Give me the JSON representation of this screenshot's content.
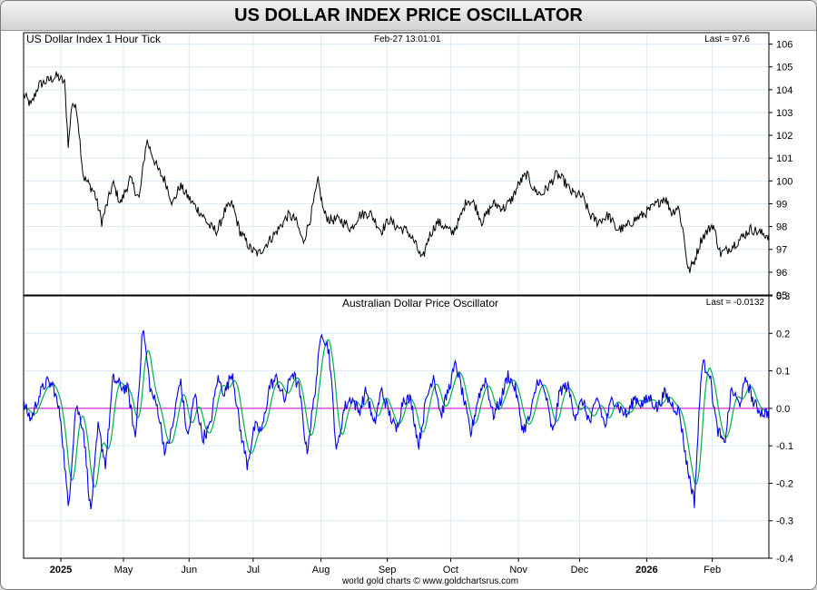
{
  "page_title": "US DOLLAR INDEX PRICE OSCILLATOR",
  "footer": "world gold charts © www.goldchartsrus.com",
  "colors": {
    "price": "#000000",
    "oscillator": "#0000ee",
    "signal": "#00b050",
    "zero_line": "#cc00cc",
    "grid": "#d9eaf5"
  },
  "chart_data": [
    {
      "type": "line",
      "title": "US Dollar Index 1 Hour Tick",
      "timestamp": "Feb-27  13:01:01",
      "last_label": "Last = 97.6",
      "ylim": [
        95,
        106.5
      ],
      "yticks": [
        95,
        96,
        97,
        98,
        99,
        100,
        101,
        102,
        103,
        104,
        105,
        106
      ],
      "ytick_labels": [
        "95",
        "96",
        "97",
        "98",
        "99",
        "100",
        "101",
        "102",
        "103",
        "104",
        "105",
        "106"
      ],
      "x_range": [
        0,
        100
      ],
      "keypoints": [
        [
          0,
          103.8
        ],
        [
          1,
          103.3
        ],
        [
          2,
          104.2
        ],
        [
          4.5,
          104.6
        ],
        [
          5.5,
          104.3
        ],
        [
          6,
          101.5
        ],
        [
          6.5,
          103.5
        ],
        [
          7.2,
          103.0
        ],
        [
          8,
          100.2
        ],
        [
          9.5,
          99.5
        ],
        [
          10.5,
          98.2
        ],
        [
          12,
          99.9
        ],
        [
          13,
          99.0
        ],
        [
          14.3,
          100.1
        ],
        [
          15.5,
          99.2
        ],
        [
          16.5,
          101.8
        ],
        [
          18,
          100.5
        ],
        [
          19,
          100.0
        ],
        [
          20,
          99.0
        ],
        [
          21,
          99.8
        ],
        [
          22.5,
          99.1
        ],
        [
          24,
          98.5
        ],
        [
          25,
          98.0
        ],
        [
          26,
          97.8
        ],
        [
          27,
          98.7
        ],
        [
          28,
          99.0
        ],
        [
          29,
          97.8
        ],
        [
          30.5,
          97.0
        ],
        [
          31.5,
          96.8
        ],
        [
          32.5,
          97.2
        ],
        [
          34,
          97.8
        ],
        [
          35.5,
          98.5
        ],
        [
          36.5,
          98.3
        ],
        [
          37.5,
          97.3
        ],
        [
          38.5,
          98.4
        ],
        [
          39.5,
          100.0
        ],
        [
          40.3,
          98.6
        ],
        [
          41,
          98.3
        ],
        [
          42.5,
          98.3
        ],
        [
          44,
          97.9
        ],
        [
          45,
          98.5
        ],
        [
          46.5,
          98.6
        ],
        [
          48,
          97.8
        ],
        [
          49,
          98.3
        ],
        [
          50,
          98.0
        ],
        [
          51.5,
          97.8
        ],
        [
          52.5,
          97.3
        ],
        [
          53.5,
          96.5
        ],
        [
          54.3,
          97.5
        ],
        [
          55.5,
          98.2
        ],
        [
          56.5,
          98.0
        ],
        [
          57.5,
          97.7
        ],
        [
          58.5,
          98.3
        ],
        [
          59.5,
          99.2
        ],
        [
          60.5,
          99.0
        ],
        [
          61.5,
          98.2
        ],
        [
          63,
          99.0
        ],
        [
          64.5,
          98.8
        ],
        [
          65.5,
          99.2
        ],
        [
          66.5,
          99.9
        ],
        [
          67.5,
          100.3
        ],
        [
          68.5,
          99.6
        ],
        [
          69.5,
          99.4
        ],
        [
          70.5,
          99.8
        ],
        [
          71.5,
          100.3
        ],
        [
          72.5,
          100.0
        ],
        [
          73.5,
          99.5
        ],
        [
          75,
          99.3
        ],
        [
          76,
          98.5
        ],
        [
          77,
          98.2
        ],
        [
          78.5,
          98.5
        ],
        [
          79.5,
          97.9
        ],
        [
          80.5,
          97.9
        ],
        [
          82,
          98.3
        ],
        [
          83.5,
          98.6
        ],
        [
          85,
          99.0
        ],
        [
          86,
          99.3
        ],
        [
          87,
          98.6
        ],
        [
          87.8,
          98.9
        ],
        [
          88.5,
          97.8
        ],
        [
          89.2,
          96.0
        ],
        [
          90,
          96.5
        ],
        [
          91,
          97.5
        ],
        [
          92.5,
          98.1
        ],
        [
          93.5,
          96.8
        ],
        [
          94.5,
          97.0
        ],
        [
          96,
          97.4
        ],
        [
          97.5,
          97.9
        ],
        [
          99,
          97.7
        ],
        [
          100,
          97.6
        ]
      ]
    },
    {
      "type": "line",
      "title": "Australian Dollar Price Oscillator",
      "last_label": "Last = -0.0132",
      "ylim": [
        -0.4,
        0.3
      ],
      "yticks": [
        -0.4,
        -0.3,
        -0.2,
        -0.1,
        0,
        0.1,
        0.2,
        0.3
      ],
      "ytick_labels": [
        "-0.4",
        "-0.3",
        "-0.2",
        "-0.1",
        "0.0",
        "0.1",
        "0.2",
        "0.3"
      ],
      "x_range": [
        0,
        100
      ],
      "series": [
        {
          "name": "oscillator",
          "keypoints": [
            [
              0,
              0.01
            ],
            [
              1,
              -0.03
            ],
            [
              2,
              0.03
            ],
            [
              3,
              0.07
            ],
            [
              4,
              0.06
            ],
            [
              5,
              -0.03
            ],
            [
              6,
              -0.27
            ],
            [
              7,
              0.01
            ],
            [
              8,
              -0.05
            ],
            [
              9,
              -0.28
            ],
            [
              10,
              -0.05
            ],
            [
              11,
              -0.15
            ],
            [
              12,
              0.08
            ],
            [
              13,
              0.06
            ],
            [
              14,
              0.05
            ],
            [
              15,
              -0.08
            ],
            [
              16,
              0.22
            ],
            [
              17,
              0.05
            ],
            [
              18,
              0.0
            ],
            [
              19,
              -0.12
            ],
            [
              20,
              -0.05
            ],
            [
              21,
              0.08
            ],
            [
              22,
              -0.08
            ],
            [
              23,
              0.04
            ],
            [
              24,
              -0.08
            ],
            [
              25,
              -0.05
            ],
            [
              26,
              0.08
            ],
            [
              27,
              0.04
            ],
            [
              28,
              0.1
            ],
            [
              29,
              -0.05
            ],
            [
              30,
              -0.15
            ],
            [
              31,
              -0.05
            ],
            [
              32,
              -0.06
            ],
            [
              33,
              0.06
            ],
            [
              34,
              0.08
            ],
            [
              35,
              0.02
            ],
            [
              36,
              0.1
            ],
            [
              37,
              0.05
            ],
            [
              38,
              -0.12
            ],
            [
              39,
              0.03
            ],
            [
              40,
              0.21
            ],
            [
              41,
              0.15
            ],
            [
              42,
              -0.12
            ],
            [
              43,
              0.0
            ],
            [
              44,
              0.03
            ],
            [
              45,
              -0.01
            ],
            [
              46,
              0.05
            ],
            [
              47,
              -0.05
            ],
            [
              48,
              0.05
            ],
            [
              49,
              -0.01
            ],
            [
              50,
              -0.06
            ],
            [
              51,
              0.03
            ],
            [
              52,
              0.02
            ],
            [
              53,
              -0.1
            ],
            [
              54,
              0.02
            ],
            [
              55,
              0.09
            ],
            [
              56,
              -0.02
            ],
            [
              57,
              0.05
            ],
            [
              58,
              0.12
            ],
            [
              59,
              0.03
            ],
            [
              60,
              -0.07
            ],
            [
              61,
              0.03
            ],
            [
              62,
              0.08
            ],
            [
              63,
              -0.02
            ],
            [
              64,
              0.02
            ],
            [
              65,
              0.09
            ],
            [
              66,
              0.05
            ],
            [
              67,
              -0.06
            ],
            [
              68,
              -0.02
            ],
            [
              69,
              0.08
            ],
            [
              70,
              0.04
            ],
            [
              71,
              -0.07
            ],
            [
              72,
              0.05
            ],
            [
              73,
              0.06
            ],
            [
              74,
              -0.02
            ],
            [
              75,
              0.02
            ],
            [
              76,
              -0.04
            ],
            [
              77,
              0.03
            ],
            [
              78,
              -0.05
            ],
            [
              79,
              0.03
            ],
            [
              80,
              0.0
            ],
            [
              81,
              -0.02
            ],
            [
              82,
              0.03
            ],
            [
              83,
              0.01
            ],
            [
              84,
              0.03
            ],
            [
              85,
              0.0
            ],
            [
              86,
              0.04
            ],
            [
              87,
              0.01
            ],
            [
              88,
              -0.01
            ],
            [
              89,
              -0.15
            ],
            [
              90,
              -0.25
            ],
            [
              91,
              0.12
            ],
            [
              92,
              0.1
            ],
            [
              93,
              -0.05
            ],
            [
              94,
              -0.1
            ],
            [
              95,
              0.05
            ],
            [
              96,
              0.01
            ],
            [
              97,
              0.08
            ],
            [
              98,
              0.01
            ],
            [
              99,
              -0.01
            ],
            [
              100,
              -0.013
            ]
          ]
        },
        {
          "name": "signal",
          "smoothing_of": "oscillator"
        }
      ],
      "zero_line": 0
    }
  ],
  "x_axis": {
    "labels": [
      {
        "text": "2025",
        "pos": 5.0,
        "bold": true
      },
      {
        "text": "May",
        "pos": 13.4,
        "bold": false
      },
      {
        "text": "Jun",
        "pos": 22.2,
        "bold": false
      },
      {
        "text": "Jul",
        "pos": 30.8,
        "bold": false
      },
      {
        "text": "Aug",
        "pos": 39.9,
        "bold": false
      },
      {
        "text": "Sep",
        "pos": 48.8,
        "bold": false
      },
      {
        "text": "Oct",
        "pos": 57.3,
        "bold": false
      },
      {
        "text": "Nov",
        "pos": 66.4,
        "bold": false
      },
      {
        "text": "Dec",
        "pos": 74.6,
        "bold": false
      },
      {
        "text": "2026",
        "pos": 83.6,
        "bold": true
      },
      {
        "text": "Feb",
        "pos": 92.4,
        "bold": false
      }
    ],
    "grid_positions": [
      5.0,
      13.4,
      22.2,
      30.8,
      39.9,
      48.8,
      57.3,
      66.4,
      74.6,
      83.6,
      92.4
    ]
  }
}
